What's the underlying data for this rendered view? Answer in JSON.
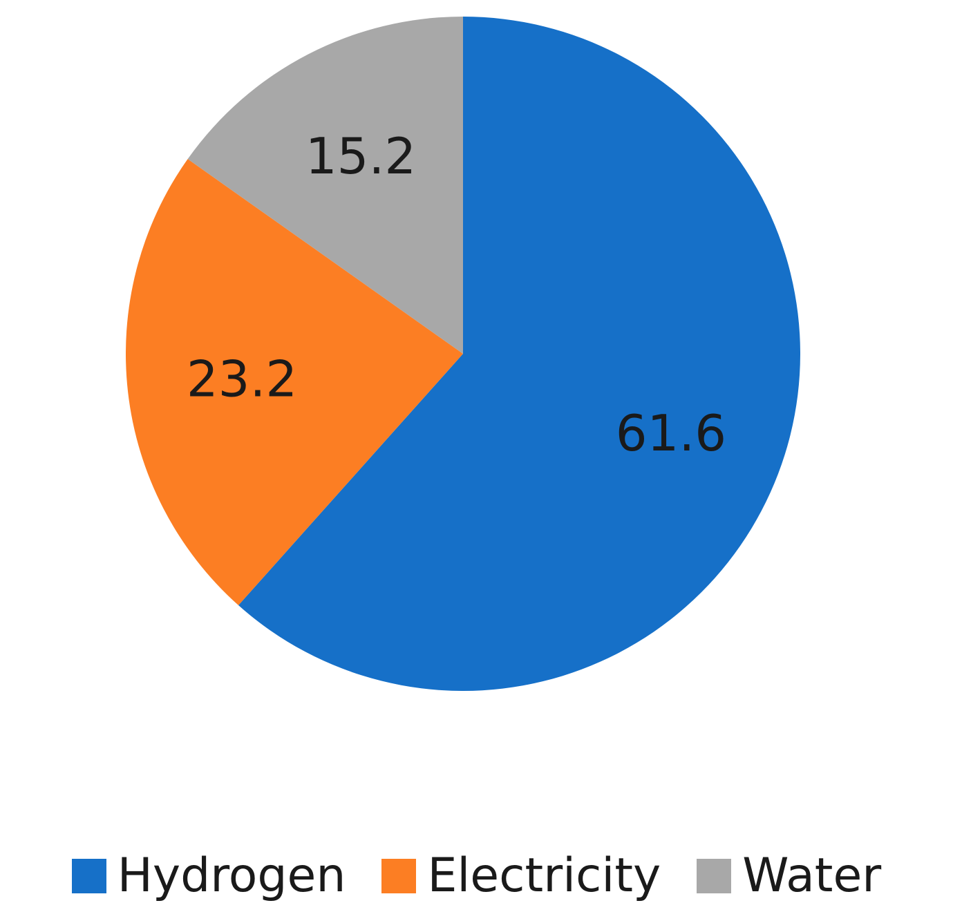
{
  "chart_data": {
    "type": "pie",
    "title": "",
    "slices": [
      {
        "name": "Hydrogen",
        "value": 61.6,
        "label": "61.6",
        "color": "#1670C8"
      },
      {
        "name": "Electricity",
        "value": 23.2,
        "label": "23.2",
        "color": "#FC7E23"
      },
      {
        "name": "Water",
        "value": 15.2,
        "label": "15.2",
        "color": "#A8A8A8"
      }
    ],
    "start_angle_deg": 0,
    "direction": "clockwise",
    "legend": {
      "placement": "bottom",
      "entries": [
        "Hydrogen",
        "Electricity",
        "Water"
      ]
    }
  }
}
